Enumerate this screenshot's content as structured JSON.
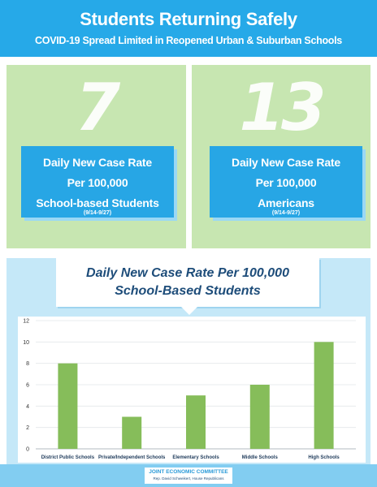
{
  "header": {
    "title": "Students Returning Safely",
    "subtitle": "COVID-19 Spread Limited in Reopened Urban & Suburban Schools"
  },
  "stats": [
    {
      "value": "7",
      "line1": "Daily New Case Rate",
      "line2": "Per 100,000",
      "line3": "School-based Students",
      "dates": "(9/14-9/27)"
    },
    {
      "value": "13",
      "line1": "Daily New Case Rate",
      "line2": "Per 100,000",
      "line3": "Americans",
      "dates": "(9/14-9/27)"
    }
  ],
  "chart_title": {
    "line1": "Daily New Case Rate Per 100,000",
    "line2": "School-Based Students"
  },
  "chart_data": {
    "type": "bar",
    "categories": [
      "District Public Schools",
      "Private/Independent Schools",
      "Elementary Schools",
      "Middle Schools",
      "High Schools"
    ],
    "values": [
      8,
      3,
      5,
      6,
      10
    ],
    "ylim": [
      0,
      12
    ],
    "yticks": [
      0,
      2,
      4,
      6,
      8,
      10,
      12
    ],
    "grid": true,
    "bar_color": "#86bd5a"
  },
  "footer": {
    "org": "JOINT ECONOMIC COMMITTEE",
    "sub": "Rep. David Schweikert, House Republicans"
  },
  "colors": {
    "accent": "#26a9e8",
    "panel_green": "#c7e6b1",
    "bar_green": "#86bd5a",
    "title_navy": "#1e4d7a"
  }
}
